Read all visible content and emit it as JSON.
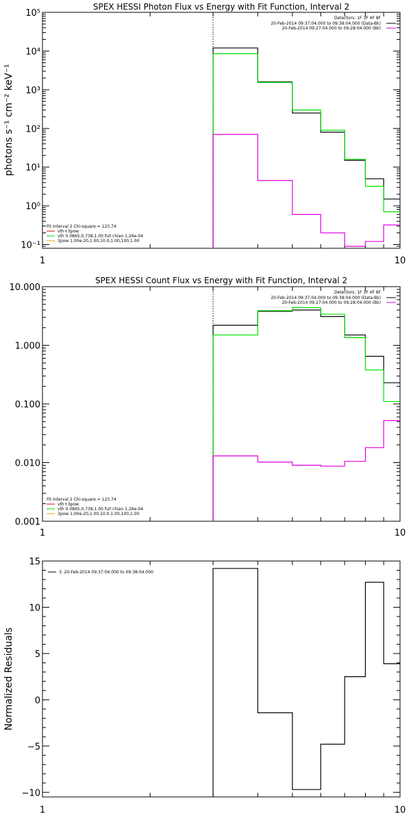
{
  "chart_data": [
    {
      "type": "line",
      "title": "SPEX HESSI Photon Flux vs Energy with Fit Function, Interval 2",
      "xlabel": "",
      "ylabel": "photons s⁻¹ cm⁻² keV⁻¹",
      "xscale": "log",
      "yscale": "log",
      "xlim": [
        1,
        10
      ],
      "ylim": [
        0.08,
        100000
      ],
      "xticks": [
        "1",
        "10"
      ],
      "yticks": [
        {
          "v": 0.1,
          "label": "10⁻¹"
        },
        {
          "v": 1,
          "label": "10⁰"
        },
        {
          "v": 10,
          "label": "10¹"
        },
        {
          "v": 100,
          "label": "10²"
        },
        {
          "v": 1000,
          "label": "10³"
        },
        {
          "v": 10000,
          "label": "10⁴"
        },
        {
          "v": 100000,
          "label": "10⁵"
        }
      ],
      "vline": 3.0,
      "bin_edges": [
        3.0,
        3.5,
        4.0,
        4.5,
        5.0,
        5.5,
        6.0,
        6.5,
        7.0,
        7.5,
        8.0,
        8.5,
        9.0,
        9.5,
        10.0
      ],
      "series": [
        {
          "color": "#000000",
          "values": [
            12000,
            12000,
            1600,
            1600,
            250,
            250,
            80,
            80,
            15,
            15,
            5,
            5,
            1.5,
            1.5
          ]
        },
        {
          "color": "#00dd00",
          "values": [
            8500,
            8500,
            1550,
            1550,
            300,
            300,
            90,
            90,
            16,
            16,
            3.2,
            3.2,
            0.7,
            0.7
          ]
        },
        {
          "color": "#dd00dd",
          "values": [
            70,
            70,
            4.5,
            4.5,
            0.6,
            0.6,
            0.2,
            0.2,
            0.09,
            0.09,
            0.12,
            0.12,
            0.32,
            0.32
          ]
        }
      ],
      "legend_tr": {
        "position": "top-right",
        "header": "Detectors: 1F 3F 4F 8F",
        "lines": [
          {
            "text": "20-Feb-2014 09:37:04.000 to 09:38:04.000 (Data-Bk)",
            "color": "#000000"
          },
          {
            "text": "20-Feb-2014 09:27:04.000 to 09:28:04.000 (Bk)",
            "color": "#dd00dd"
          }
        ]
      },
      "legend_bl": {
        "position": "bottom-left",
        "header": "Fit Interval 2   Chi-square = 123.74",
        "lines": [
          {
            "text": "vth+3pow",
            "color": "#dd0000"
          },
          {
            "text": "vth 0.0865,0.738,1.00  full chian 1.26e-04",
            "color": "#00dd00"
          },
          {
            "text": "3pow 1.00e-20,1.00,10.0,1.00,100,1.00",
            "color": "#ddaa00"
          }
        ]
      }
    },
    {
      "type": "line",
      "title": "SPEX HESSI Count Flux vs Energy with Fit Function, Interval 2",
      "xlabel": "",
      "ylabel": "",
      "xscale": "log",
      "yscale": "log",
      "xlim": [
        1,
        10
      ],
      "ylim": [
        0.001,
        10
      ],
      "xticks": [
        "1",
        "10"
      ],
      "yticks": [
        {
          "v": 0.001,
          "label": "0.001"
        },
        {
          "v": 0.01,
          "label": "0.010"
        },
        {
          "v": 0.1,
          "label": "0.100"
        },
        {
          "v": 1,
          "label": "1.000"
        },
        {
          "v": 10,
          "label": "10.000"
        }
      ],
      "vline": 3.0,
      "bin_edges": [
        3.0,
        3.5,
        4.0,
        4.5,
        5.0,
        5.5,
        6.0,
        6.5,
        7.0,
        7.5,
        8.0,
        8.5,
        9.0,
        9.5,
        10.0
      ],
      "series": [
        {
          "color": "#000000",
          "values": [
            2.2,
            2.2,
            3.8,
            3.8,
            4.0,
            4.0,
            3.1,
            3.1,
            1.5,
            1.5,
            0.65,
            0.65,
            0.23,
            0.23
          ]
        },
        {
          "color": "#00dd00",
          "values": [
            1.5,
            1.5,
            3.9,
            3.9,
            4.4,
            4.4,
            3.4,
            3.4,
            1.35,
            1.35,
            0.38,
            0.38,
            0.11,
            0.11
          ]
        },
        {
          "color": "#dd00dd",
          "values": [
            0.013,
            0.013,
            0.0102,
            0.0102,
            0.009,
            0.009,
            0.0087,
            0.0087,
            0.0105,
            0.0105,
            0.018,
            0.018,
            0.052,
            0.052
          ]
        }
      ],
      "legend_tr": {
        "position": "top-right",
        "header": "Detectors: 1F 3F 4F 8F",
        "lines": [
          {
            "text": "20-Feb-2014 09:37:04.000 to 09:38:04.000 (Data-Bk)",
            "color": "#000000"
          },
          {
            "text": "20-Feb-2014 09:27:04.000 to 09:28:04.000 (Bk)",
            "color": "#dd00dd"
          }
        ]
      },
      "legend_bl": {
        "position": "bottom-left",
        "header": "Fit Interval 2   Chi-square = 123.74",
        "lines": [
          {
            "text": "vth+3pow",
            "color": "#dd0000"
          },
          {
            "text": "vth 0.0865,0.738,1.00  full chian 1.26e-04",
            "color": "#00dd00"
          },
          {
            "text": "3pow 1.00e-20,1.00,10.0,1.00,100,1.00",
            "color": "#ddaa00"
          }
        ]
      }
    },
    {
      "type": "line",
      "title": "",
      "xlabel": "",
      "ylabel": "Normalized Residuals",
      "xscale": "log",
      "yscale": "linear",
      "xlim": [
        1,
        10
      ],
      "ylim": [
        -10.5,
        15
      ],
      "xticks": [
        "1",
        "10"
      ],
      "yticks": [
        {
          "v": -10,
          "label": "−10"
        },
        {
          "v": -5,
          "label": "−5"
        },
        {
          "v": 0,
          "label": "0"
        },
        {
          "v": 5,
          "label": "5"
        },
        {
          "v": 10,
          "label": "10"
        },
        {
          "v": 15,
          "label": "15"
        }
      ],
      "bin_edges": [
        3.0,
        3.5,
        4.0,
        4.5,
        5.0,
        5.5,
        6.0,
        6.5,
        7.0,
        7.5,
        8.0,
        8.5,
        9.0,
        9.5,
        10.0
      ],
      "series": [
        {
          "color": "#000000",
          "values": [
            14.2,
            14.2,
            -1.4,
            -1.4,
            -9.7,
            -9.7,
            -4.8,
            -4.8,
            2.5,
            2.5,
            12.7,
            12.7,
            3.9,
            3.9
          ]
        }
      ],
      "legend_tl": {
        "position": "top-left",
        "lines": [
          {
            "text": "3. 20-Feb-2014 09:37:04.000 to 09:38:04.000",
            "color": "#000000"
          }
        ]
      }
    }
  ]
}
